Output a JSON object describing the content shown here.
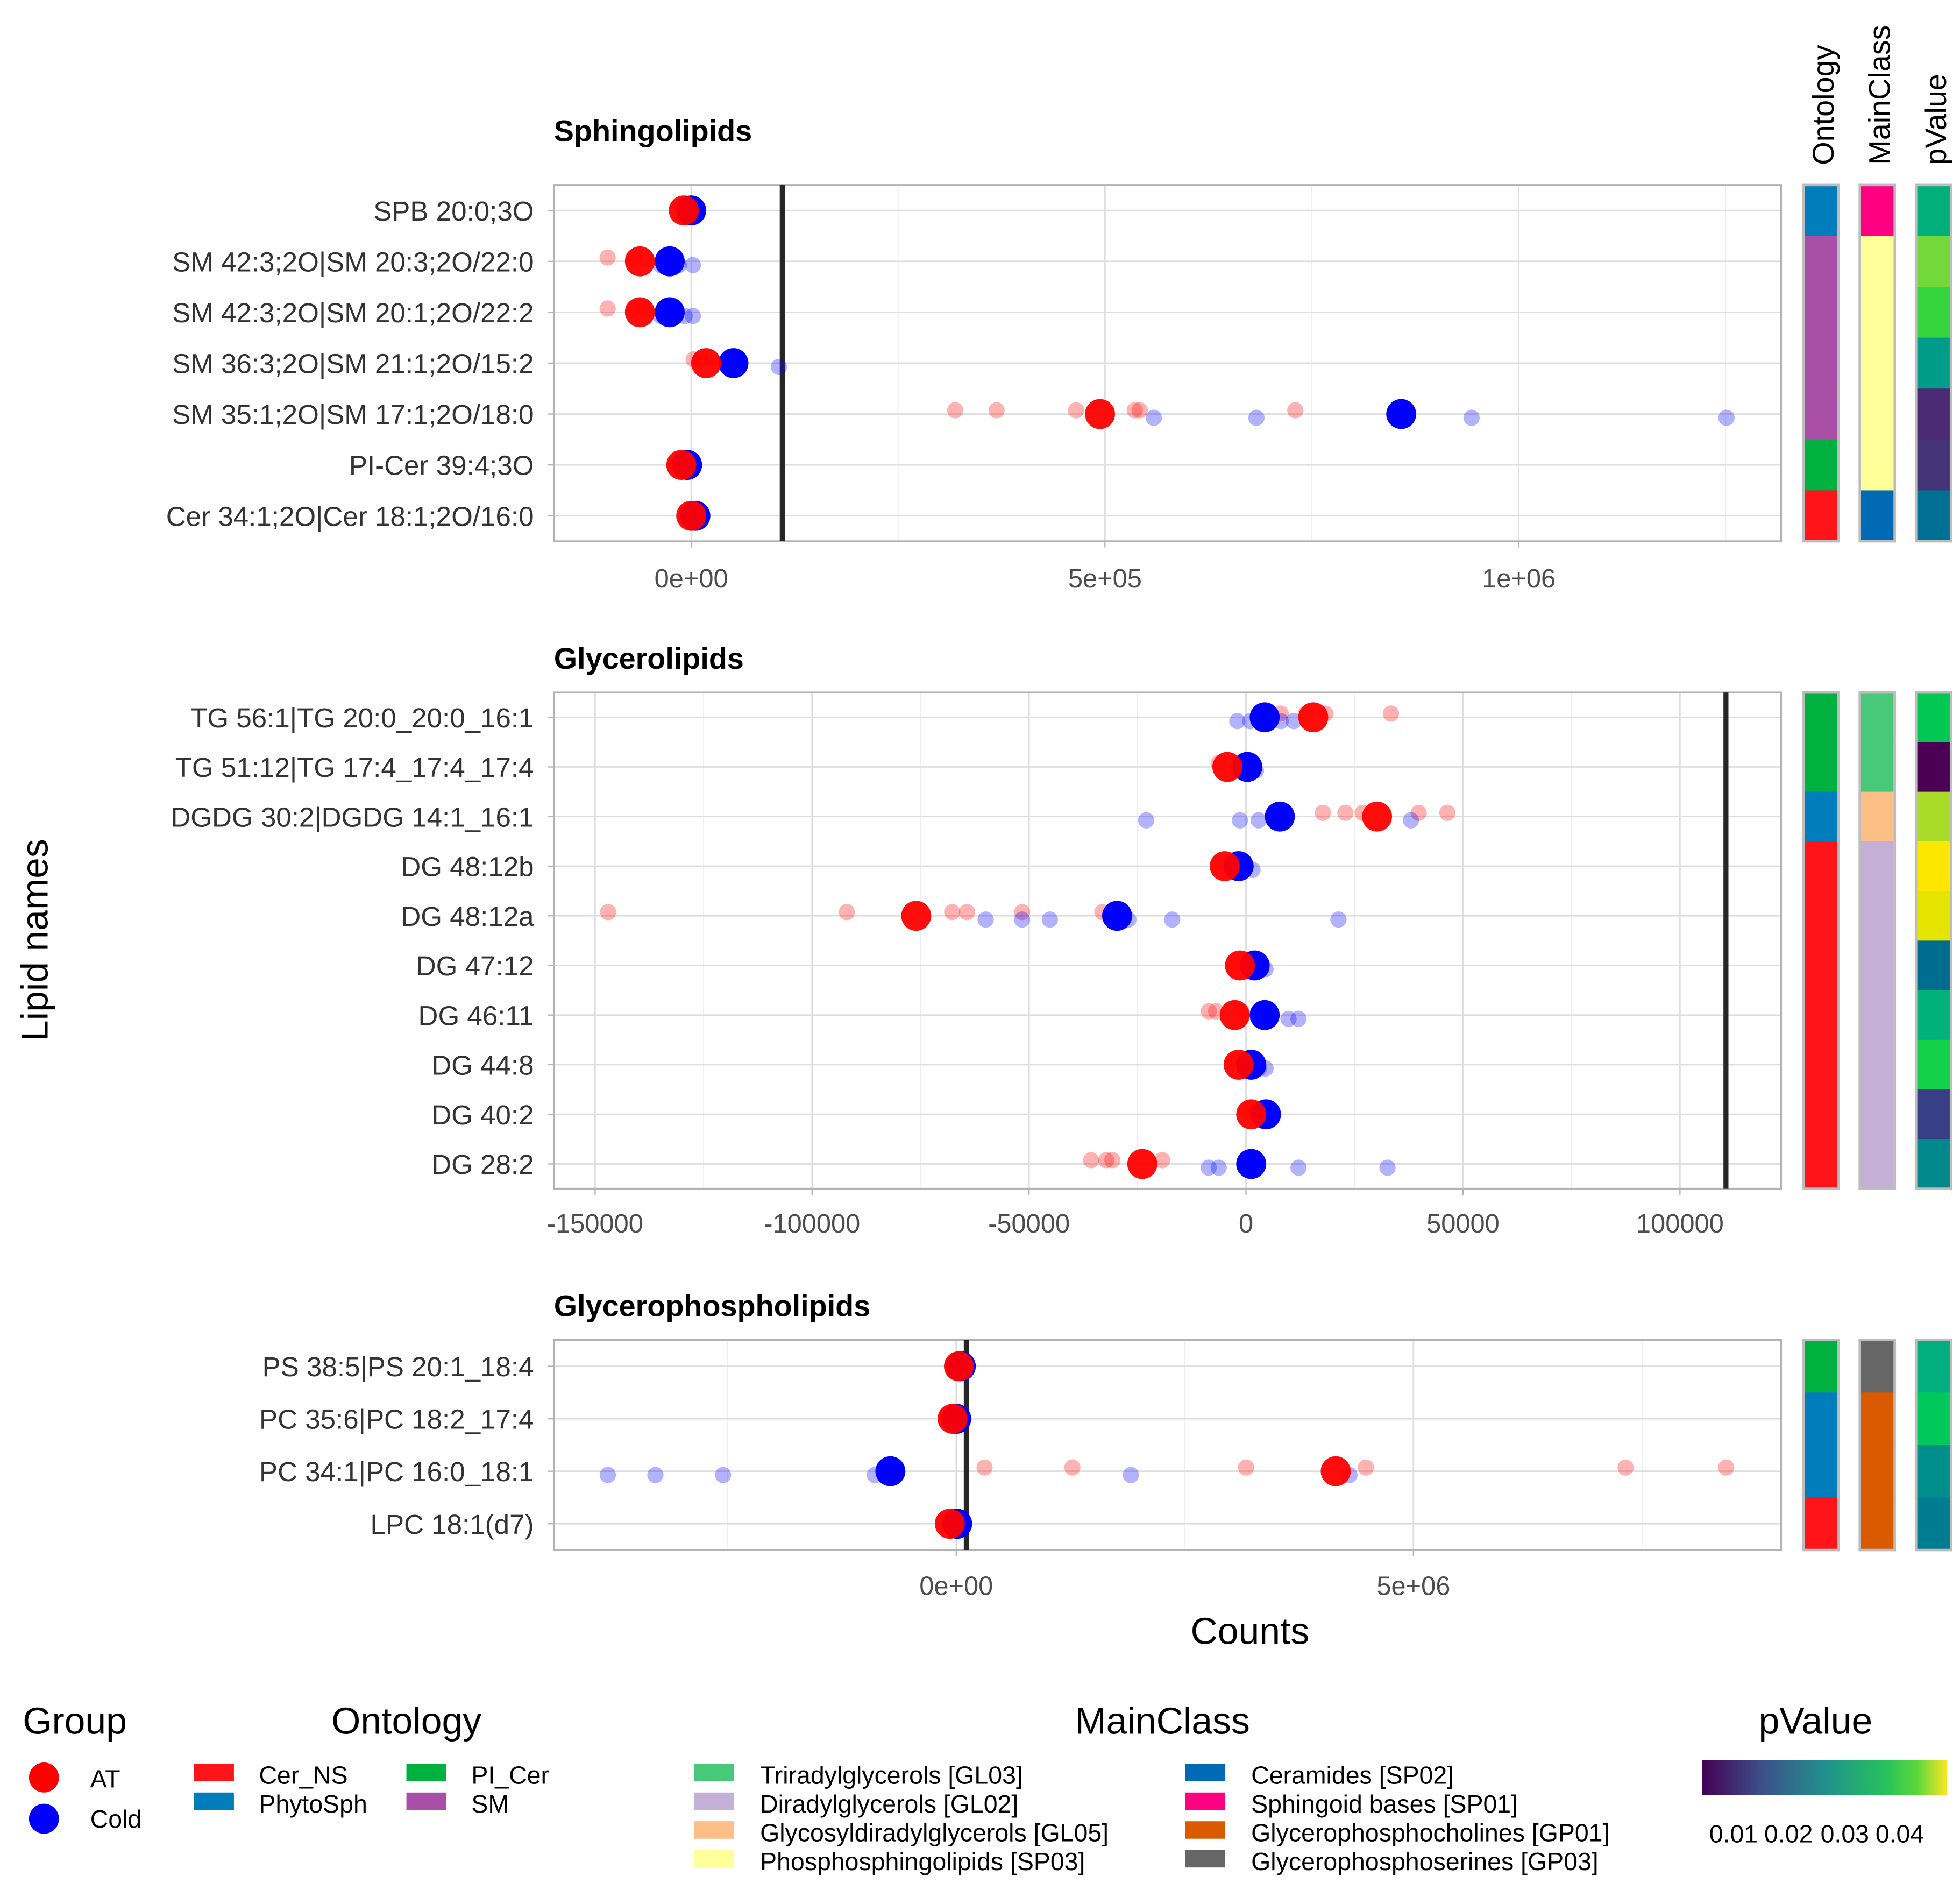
{
  "chart_data": {
    "type": "scatter",
    "xlabel": "Counts",
    "ylabel": "Lipid names",
    "annotation_columns": [
      "Ontology",
      "MainClass",
      "pValue"
    ],
    "group_colors": {
      "AT": "#FF0000",
      "Cold": "#0000FF"
    },
    "ontology_colors": {
      "Cer_NS": "#FF1419",
      "PhytoSph": "#007DBA",
      "PI_Cer": "#00B140",
      "SM": "#A94FA6"
    },
    "mainclass_colors": {
      "Triradylglycerols [GL03]": "#48C97A",
      "Diradylglycerols [GL02]": "#C4AFD6",
      "Glycosyldiradylglycerols [GL05]": "#FEBF86",
      "Phosphosphingolipids [SP03]": "#FFFF99",
      "Ceramides [SP02]": "#006AB5",
      "Sphingoid bases [SP01]": "#FF0080",
      "Glycerophosphocholines [GP01]": "#DA5A00",
      "Glycerophosphoserines [GP03]": "#666666"
    },
    "panels": [
      {
        "title": "Sphingolipids",
        "xlim": [
          -166000,
          1317000
        ],
        "threshold": 110000,
        "ticks": [
          {
            "value": 0,
            "label": "0e+00"
          },
          {
            "value": 500000,
            "label": "5e+05"
          },
          {
            "value": 1000000,
            "label": "1e+06"
          }
        ],
        "rows": [
          {
            "label": "SPB 20:0;3O",
            "at_mean": -9000,
            "cold_mean": 0,
            "at_reps": [
              -12000,
              -5000
            ],
            "cold_reps": [
              -3000,
              4000
            ],
            "ontology": "PhytoSph",
            "mainclass": "Sphingoid bases [SP01]",
            "pvalue": 0.03,
            "pcolor": "#00AF7A"
          },
          {
            "label": "SM 42:3;2O|SM 20:3;2O/22:0",
            "at_mean": -62000,
            "cold_mean": -26000,
            "at_reps": [
              -101000,
              -70000,
              -55000
            ],
            "cold_reps": [
              -37000,
              -15000,
              2000
            ],
            "ontology": "SM",
            "mainclass": "Phosphosphingolipids [SP03]",
            "pvalue": 0.039,
            "pcolor": "#73D83A"
          },
          {
            "label": "SM 42:3;2O|SM 20:1;2O/22:2",
            "at_mean": -62000,
            "cold_mean": -26000,
            "at_reps": [
              -101000,
              -70000,
              -55000
            ],
            "cold_reps": [
              -37000,
              -8000,
              2000
            ],
            "ontology": "SM",
            "mainclass": "Phosphosphingolipids [SP03]",
            "pvalue": 0.035,
            "pcolor": "#36D43F"
          },
          {
            "label": "SM 36:3;2O|SM 21:1;2O/15:2",
            "at_mean": 18000,
            "cold_mean": 51000,
            "at_reps": [
              3000,
              12000,
              25000
            ],
            "cold_reps": [
              106000,
              45000
            ],
            "ontology": "SM",
            "mainclass": "Phosphosphingolipids [SP03]",
            "pvalue": 0.027,
            "pcolor": "#009C8A"
          },
          {
            "label": "SM 35:1;2O|SM 17:1;2O/18:0",
            "at_mean": 494000,
            "cold_mean": 858000,
            "at_reps": [
              319000,
              369000,
              465000,
              536000,
              542000,
              730000
            ],
            "cold_reps": [
              559000,
              683000,
              943000,
              1251000
            ],
            "ontology": "SM",
            "mainclass": "Phosphosphingolipids [SP03]",
            "pvalue": 0.006,
            "pcolor": "#4A2A72"
          },
          {
            "label": "PI-Cer 39:4;3O",
            "at_mean": -12000,
            "cold_mean": -5000,
            "at_reps": [
              -15000,
              -8000
            ],
            "cold_reps": [
              -2000
            ],
            "ontology": "PI_Cer",
            "mainclass": "Phosphosphingolipids [SP03]",
            "pvalue": 0.007,
            "pcolor": "#463478"
          },
          {
            "label": "Cer 34:1;2O|Cer 18:1;2O/16:0",
            "at_mean": 0,
            "cold_mean": 5000,
            "at_reps": [
              -3000,
              3000
            ],
            "cold_reps": [
              8000
            ],
            "ontology": "Cer_NS",
            "mainclass": "Ceramides [SP02]",
            "pvalue": 0.02,
            "pcolor": "#007094"
          }
        ]
      },
      {
        "title": "Glycerolipids",
        "xlim": [
          -159500,
          123300
        ],
        "threshold": 110600,
        "ticks": [
          {
            "value": -150000,
            "label": "-150000"
          },
          {
            "value": -100000,
            "label": "-100000"
          },
          {
            "value": -50000,
            "label": "-50000"
          },
          {
            "value": 0,
            "label": "0"
          },
          {
            "value": 50000,
            "label": "50000"
          },
          {
            "value": 100000,
            "label": "100000"
          }
        ],
        "rows": [
          {
            "label": "TG 56:1|TG 20:0_20:0_16:1",
            "at_mean": 15500,
            "cold_mean": 4300,
            "at_reps": [
              18300,
              33400,
              13800,
              8000
            ],
            "cold_reps": [
              -2000,
              1000,
              8000,
              11000
            ],
            "ontology": "PI_Cer",
            "mainclass": "Triradylglycerols [GL03]",
            "pvalue": 0.033,
            "pcolor": "#00C853"
          },
          {
            "label": "TG 51:12|TG 17:4_17:4_17:4",
            "at_mean": -4300,
            "cold_mean": 300,
            "at_reps": [
              -6300,
              -2000
            ],
            "cold_reps": [
              -2000,
              2300
            ],
            "ontology": "PI_Cer",
            "mainclass": "Triradylglycerols [GL03]",
            "pvalue": 0.002,
            "pcolor": "#4B0055"
          },
          {
            "label": "DGDG 30:2|DGDG 14:1_16:1",
            "at_mean": 30200,
            "cold_mean": 7800,
            "at_reps": [
              17700,
              22900,
              26900,
              39800,
              46400
            ],
            "cold_reps": [
              -23000,
              -1400,
              2900,
              38000
            ],
            "ontology": "PhytoSph",
            "mainclass": "Glycosyldiradylglycerols [GL05]",
            "pvalue": 0.042,
            "pcolor": "#A8DC28"
          },
          {
            "label": "DG 48:12b",
            "at_mean": -4900,
            "cold_mean": -1700,
            "at_reps": [
              -3000,
              -6000
            ],
            "cold_reps": [
              1500,
              -500
            ],
            "ontology": "Cer_NS",
            "mainclass": "Diradylglycerols [GL02]",
            "pvalue": 0.048,
            "pcolor": "#FDE600"
          },
          {
            "label": "DG 48:12a",
            "at_mean": -76000,
            "cold_mean": -29700,
            "at_reps": [
              -147000,
              -92000,
              -67700,
              -64300,
              -51600,
              -33100
            ],
            "cold_reps": [
              -60000,
              -51600,
              -45200,
              -27100,
              -17000,
              21300
            ],
            "ontology": "Cer_NS",
            "mainclass": "Diradylglycerols [GL02]",
            "pvalue": 0.046,
            "pcolor": "#E5E500"
          },
          {
            "label": "DG 47:12",
            "at_mean": -1400,
            "cold_mean": 2000,
            "at_reps": [
              -2500,
              1000
            ],
            "cold_reps": [
              3500,
              4500
            ],
            "ontology": "Cer_NS",
            "mainclass": "Diradylglycerols [GL02]",
            "pvalue": 0.018,
            "pcolor": "#006C8E"
          },
          {
            "label": "DG 46:11",
            "at_mean": -2600,
            "cold_mean": 4300,
            "at_reps": [
              -8600,
              -6900,
              -1000
            ],
            "cold_reps": [
              12100,
              9800
            ],
            "ontology": "Cer_NS",
            "mainclass": "Diradylglycerols [GL02]",
            "pvalue": 0.03,
            "pcolor": "#00B17A"
          },
          {
            "label": "DG 44:8",
            "at_mean": -1700,
            "cold_mean": 1200,
            "at_reps": [
              -3000,
              500
            ],
            "cold_reps": [
              4500,
              3000
            ],
            "ontology": "Cer_NS",
            "mainclass": "Diradylglycerols [GL02]",
            "pvalue": 0.035,
            "pcolor": "#14D14A"
          },
          {
            "label": "DG 40:2",
            "at_mean": 1200,
            "cold_mean": 4600,
            "at_reps": [
              2500,
              300
            ],
            "cold_reps": [
              5500,
              3500
            ],
            "ontology": "Cer_NS",
            "mainclass": "Diradylglycerols [GL02]",
            "pvalue": 0.012,
            "pcolor": "#393F86"
          },
          {
            "label": "DG 28:2",
            "at_mean": -23900,
            "cold_mean": 1200,
            "at_reps": [
              -35700,
              -32200,
              -30800,
              -19300
            ],
            "cold_reps": [
              -8600,
              -6300,
              12100,
              32600
            ],
            "ontology": "Cer_NS",
            "mainclass": "Diradylglycerols [GL02]",
            "pvalue": 0.023,
            "pcolor": "#00888A"
          }
        ]
      },
      {
        "title": "Glycerophospholipids",
        "xlim": [
          -4400000,
          9020000
        ],
        "threshold": 110000,
        "ticks": [
          {
            "value": 0,
            "label": "0e+00"
          },
          {
            "value": 5000000,
            "label": "5e+06"
          }
        ],
        "rows": [
          {
            "label": "PS 38:5|PS 20:1_18:4",
            "at_mean": 30000,
            "cold_mean": 50000,
            "at_reps": [
              0
            ],
            "cold_reps": [
              80000
            ],
            "ontology": "PI_Cer",
            "mainclass": "Glycerophosphoserines [GP03]",
            "pvalue": 0.029,
            "pcolor": "#00AE7E"
          },
          {
            "label": "PC 35:6|PC 18:2_17:4",
            "at_mean": -40000,
            "cold_mean": 0,
            "at_reps": [
              -60000
            ],
            "cold_reps": [
              20000
            ],
            "ontology": "PhytoSph",
            "mainclass": "Glycerophosphocholines [GP01]",
            "pvalue": 0.033,
            "pcolor": "#00C85A"
          },
          {
            "label": "PC 34:1|PC 16:0_18:1",
            "at_mean": 4150000,
            "cold_mean": -720000,
            "at_reps": [
              310000,
              1270000,
              3170000,
              4480000,
              7320000,
              8420000
            ],
            "cold_reps": [
              -3810000,
              -3290000,
              -2550000,
              -890000,
              1910000,
              4300000
            ],
            "ontology": "PhytoSph",
            "mainclass": "Glycerophosphocholines [GP01]",
            "pvalue": 0.024,
            "pcolor": "#008E8A"
          },
          {
            "label": "LPC 18:1(d7)",
            "at_mean": -70000,
            "cold_mean": 10000,
            "at_reps": [
              -90000
            ],
            "cold_reps": [
              30000
            ],
            "ontology": "Cer_NS",
            "mainclass": "Glycerophosphocholines [GP01]",
            "pvalue": 0.021,
            "pcolor": "#007C90"
          }
        ]
      }
    ]
  },
  "legend": {
    "group": {
      "title": "Group",
      "items": [
        "AT",
        "Cold"
      ]
    },
    "ontology": {
      "title": "Ontology",
      "items": [
        "Cer_NS",
        "PhytoSph",
        "PI_Cer",
        "SM"
      ]
    },
    "mainclass": {
      "title": "MainClass",
      "items": [
        "Triradylglycerols [GL03]",
        "Diradylglycerols [GL02]",
        "Glycosyldiradylglycerols [GL05]",
        "Phosphosphingolipids [SP03]",
        "Ceramides [SP02]",
        "Sphingoid bases [SP01]",
        "Glycerophosphocholines [GP01]",
        "Glycerophosphoserines [GP03]"
      ]
    },
    "pvalue": {
      "title": "pValue",
      "ticks": [
        "0.01",
        "0.02",
        "0.03",
        "0.04"
      ],
      "range": [
        0.002,
        0.048
      ]
    }
  }
}
